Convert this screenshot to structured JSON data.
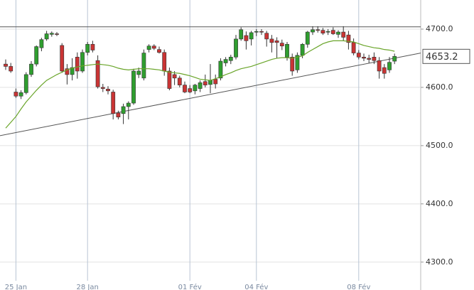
{
  "chart_data": {
    "type": "candlestick",
    "categories": [
      null,
      null,
      "25 Jan",
      null,
      null,
      null,
      null,
      null,
      null,
      null,
      null,
      null,
      null,
      null,
      null,
      null,
      "28 Jan",
      null,
      null,
      null,
      null,
      null,
      null,
      null,
      null,
      null,
      null,
      null,
      null,
      null,
      null,
      null,
      null,
      null,
      null,
      null,
      "01 Fév",
      null,
      null,
      null,
      null,
      null,
      null,
      null,
      null,
      null,
      null,
      null,
      null,
      "04 Fév",
      null,
      null,
      null,
      null,
      null,
      null,
      null,
      null,
      null,
      null,
      null,
      null,
      null,
      null,
      null,
      null,
      null,
      null,
      null,
      "08 Fév",
      null,
      null,
      null,
      null,
      null,
      null,
      null
    ],
    "open": [
      4640,
      4636,
      4592,
      4585,
      4591,
      4622,
      4640,
      4668,
      4683,
      4691,
      4692,
      4672,
      4632,
      4622,
      4652,
      4628,
      4660,
      4674,
      4646,
      4600,
      4597,
      4592,
      4556,
      4555,
      4567,
      4573,
      4622,
      4616,
      4665,
      4671,
      4665,
      4660,
      4628,
      4622,
      4616,
      4604,
      4598,
      4594,
      4598,
      4610,
      4605,
      4614,
      4616,
      4642,
      4646,
      4652,
      4683,
      4689,
      4683,
      4695,
      4696,
      4693,
      4683,
      4680,
      4676,
      4652,
      4652,
      4630,
      4655,
      4674,
      4695,
      4699,
      4698,
      4695,
      4698,
      4691,
      4695,
      4690,
      4677,
      4659,
      4652,
      4650,
      4652,
      4646,
      4634,
      4630,
      4645
    ],
    "high": [
      4648,
      4642,
      4598,
      4595,
      4626,
      4645,
      4672,
      4685,
      4697,
      4696,
      4695,
      4676,
      4640,
      4650,
      4660,
      4665,
      4678,
      4680,
      4655,
      4606,
      4602,
      4596,
      4560,
      4572,
      4576,
      4632,
      4634,
      4665,
      4674,
      4674,
      4670,
      4665,
      4634,
      4628,
      4620,
      4610,
      4604,
      4606,
      4612,
      4622,
      4640,
      4622,
      4650,
      4652,
      4656,
      4690,
      4703,
      4696,
      4697,
      4700,
      4700,
      4697,
      4690,
      4686,
      4682,
      4678,
      4658,
      4660,
      4676,
      4697,
      4705,
      4705,
      4702,
      4700,
      4703,
      4698,
      4705,
      4697,
      4684,
      4664,
      4658,
      4656,
      4660,
      4652,
      4640,
      4652,
      4658
    ],
    "low": [
      4630,
      4625,
      4582,
      4580,
      4588,
      4618,
      4636,
      4662,
      4680,
      4687,
      4688,
      4625,
      4605,
      4612,
      4615,
      4625,
      4655,
      4660,
      4598,
      4592,
      4588,
      4545,
      4545,
      4537,
      4545,
      4570,
      4616,
      4612,
      4660,
      4664,
      4658,
      4620,
      4595,
      4604,
      4600,
      4590,
      4590,
      4588,
      4592,
      4600,
      4590,
      4598,
      4612,
      4636,
      4640,
      4648,
      4680,
      4665,
      4672,
      4688,
      4690,
      4670,
      4660,
      4650,
      4664,
      4646,
      4620,
      4625,
      4650,
      4668,
      4690,
      4694,
      4690,
      4690,
      4690,
      4685,
      4680,
      4665,
      4655,
      4648,
      4645,
      4642,
      4640,
      4615,
      4615,
      4625,
      4640
    ],
    "close": [
      4636,
      4628,
      4585,
      4591,
      4622,
      4640,
      4670,
      4682,
      4692,
      4693,
      4691,
      4628,
      4622,
      4634,
      4628,
      4660,
      4674,
      4664,
      4601,
      4598,
      4594,
      4555,
      4549,
      4567,
      4573,
      4628,
      4628,
      4659,
      4671,
      4667,
      4660,
      4628,
      4598,
      4616,
      4604,
      4592,
      4592,
      4604,
      4608,
      4604,
      4612,
      4606,
      4645,
      4648,
      4652,
      4683,
      4699,
      4680,
      4694,
      4696,
      4695,
      4683,
      4677,
      4677,
      4671,
      4674,
      4628,
      4655,
      4674,
      4695,
      4699,
      4698,
      4693,
      4696,
      4692,
      4695,
      4686,
      4677,
      4659,
      4652,
      4650,
      4648,
      4646,
      4628,
      4624,
      4643,
      4653.2
    ],
    "up_color": "#2f9e2f",
    "down_color": "#c93434",
    "series": [
      {
        "color": "#6aa52a",
        "values": [
          4530,
          4540,
          4550,
          4563,
          4575,
          4585,
          4595,
          4604,
          4612,
          4617,
          4622,
          4626,
          4630,
          4633,
          4635,
          4637,
          4638,
          4639,
          4640,
          4639,
          4638,
          4636,
          4633,
          4631,
          4630,
          4631,
          4632,
          4632,
          4632,
          4631,
          4630,
          4628,
          4626,
          4625,
          4624,
          4622,
          4620,
          4617,
          4614,
          4613,
          4612,
          4615,
          4618,
          4622,
          4625,
          4629,
          4632,
          4634,
          4636,
          4639,
          4642,
          4645,
          4648,
          4650,
          4651,
          4651,
          4650,
          4652,
          4654,
          4660,
          4665,
          4670,
          4675,
          4678,
          4680,
          4680,
          4680,
          4679,
          4678,
          4675,
          4672,
          4670,
          4668,
          4667,
          4665,
          4664,
          4662
        ]
      }
    ],
    "trendlines": [
      {
        "values": [
          4704,
          4704
        ]
      },
      {
        "values": [
          4517,
          4659
        ]
      }
    ],
    "last_price": 4653.2,
    "ylim": [
      4268,
      4750
    ],
    "yticks": [
      {
        "value": 4300,
        "label": "4300.0"
      },
      {
        "value": 4400,
        "label": "4400.0"
      },
      {
        "value": 4500,
        "label": "4500.0"
      },
      {
        "value": 4600,
        "label": "4600.0"
      },
      {
        "value": 4700,
        "label": "4700.0"
      }
    ],
    "grid": true
  }
}
